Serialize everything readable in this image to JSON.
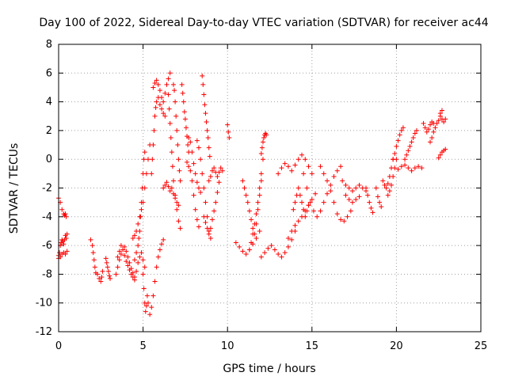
{
  "chart_data": {
    "type": "scatter",
    "title": "Day 100 of 2022, Sidereal Day-to-day VTEC variation (SDTVAR) for receiver ac44",
    "xlabel": "GPS time / hours",
    "ylabel": "SDTVAR / TECUs",
    "xlim": [
      0,
      25
    ],
    "ylim": [
      -12,
      8
    ],
    "xticks": [
      0,
      5,
      10,
      15,
      20,
      25
    ],
    "yticks": [
      -12,
      -10,
      -8,
      -6,
      -4,
      -2,
      0,
      2,
      4,
      6,
      8
    ],
    "grid": true,
    "marker": "+",
    "color": "#ff0000",
    "segments": [
      {
        "name": "arc-1",
        "x": [
          0.0,
          0.1,
          0.2,
          0.3,
          0.35,
          0.4,
          0.45
        ],
        "y": [
          -2.7,
          -3.0,
          -3.5,
          -3.8,
          -3.9,
          -3.8,
          -4.0
        ]
      },
      {
        "name": "arc-2",
        "x": [
          0.0,
          0.05,
          0.1,
          0.15,
          0.2,
          0.25,
          0.3,
          0.35,
          0.4,
          0.45,
          0.5
        ],
        "y": [
          -6.9,
          -6.5,
          -6.0,
          -5.8,
          -5.6,
          -5.7,
          -5.9,
          -5.6,
          -5.3,
          -5.5,
          -5.2
        ]
      },
      {
        "name": "arc-3",
        "x": [
          0.0,
          0.1,
          0.2,
          0.3,
          0.4,
          0.5
        ],
        "y": [
          -6.7,
          -6.8,
          -6.6,
          -6.5,
          -6.6,
          -6.4
        ]
      },
      {
        "name": "arc-4",
        "x": [
          1.9,
          2.0,
          2.05,
          2.1,
          2.15,
          2.2,
          2.3,
          2.4,
          2.5,
          2.55,
          2.6
        ],
        "y": [
          -5.6,
          -6.0,
          -6.5,
          -7.0,
          -7.5,
          -7.9,
          -8.0,
          -8.3,
          -8.5,
          -8.2,
          -7.8
        ]
      },
      {
        "name": "arc-5",
        "x": [
          2.8,
          2.85,
          2.9,
          2.95,
          3.0,
          3.05
        ],
        "y": [
          -6.9,
          -7.2,
          -7.5,
          -7.8,
          -8.1,
          -8.3
        ]
      },
      {
        "name": "arc-6",
        "x": [
          3.4,
          3.5,
          3.6,
          3.7,
          3.8,
          3.9,
          4.0,
          4.1,
          4.2,
          4.3,
          4.4,
          4.5,
          4.6,
          4.7,
          4.8,
          4.9,
          5.0,
          5.1
        ],
        "y": [
          -8.0,
          -7.5,
          -7.0,
          -6.6,
          -6.3,
          -6.1,
          -6.4,
          -6.8,
          -7.2,
          -7.6,
          -7.9,
          -8.2,
          -7.8,
          -7.2,
          -6.8,
          -6.5,
          -7.0,
          -7.5
        ]
      },
      {
        "name": "arc-7",
        "x": [
          3.5,
          3.6,
          3.7,
          3.8,
          3.9,
          4.0,
          4.1,
          4.2,
          4.3,
          4.4,
          4.5
        ],
        "y": [
          -6.8,
          -6.4,
          -6.0,
          -6.3,
          -6.7,
          -7.1,
          -7.4,
          -7.7,
          -8.0,
          -8.2,
          -8.4
        ]
      },
      {
        "name": "arc-8",
        "x": [
          4.4,
          4.5,
          4.6,
          4.7,
          4.8,
          4.9,
          5.0,
          5.1,
          5.2,
          5.3,
          5.4
        ],
        "y": [
          -5.5,
          -5.3,
          -5.0,
          -4.5,
          -4.0,
          -3.5,
          -3.0,
          -2.0,
          -1.0,
          0.0,
          1.0
        ]
      },
      {
        "name": "arc-9",
        "x": [
          4.5,
          4.6,
          4.7,
          4.75,
          4.8,
          4.85,
          4.9,
          4.95,
          5.0,
          5.05,
          5.1
        ],
        "y": [
          -7.0,
          -6.5,
          -6.0,
          -5.5,
          -5.0,
          -4.0,
          -3.0,
          -2.0,
          -1.0,
          0.0,
          0.5
        ]
      },
      {
        "name": "arc-10",
        "x": [
          5.0,
          5.05,
          5.1,
          5.15,
          5.2,
          5.25,
          5.3,
          5.4,
          5.5,
          5.6,
          5.7,
          5.8,
          5.9,
          6.0,
          6.1,
          6.2
        ],
        "y": [
          -8.0,
          -9.0,
          -10.0,
          -10.6,
          -10.2,
          -9.5,
          -10.0,
          -10.8,
          -10.3,
          -9.5,
          -8.5,
          -7.5,
          -6.8,
          -6.3,
          -5.9,
          -5.6
        ]
      },
      {
        "name": "arc-11",
        "x": [
          5.5,
          5.55,
          5.6,
          5.65,
          5.7,
          5.75,
          5.8,
          5.9,
          6.0,
          6.1,
          6.2,
          6.3
        ],
        "y": [
          -1.0,
          0.0,
          1.0,
          2.0,
          3.0,
          3.6,
          4.0,
          4.3,
          3.8,
          3.5,
          3.2,
          3.0
        ]
      },
      {
        "name": "arc-12",
        "x": [
          5.6,
          5.7,
          5.8,
          5.9,
          6.0,
          6.1,
          6.2,
          6.3,
          6.4,
          6.5,
          6.6
        ],
        "y": [
          5.0,
          5.3,
          5.5,
          5.2,
          4.8,
          4.3,
          4.0,
          4.6,
          5.2,
          5.6,
          6.0
        ]
      },
      {
        "name": "arc-13",
        "x": [
          6.2,
          6.3,
          6.4,
          6.5,
          6.6,
          6.7,
          6.8,
          6.9,
          7.0,
          7.1
        ],
        "y": [
          -2.0,
          -1.8,
          -1.6,
          -1.9,
          -2.2,
          -2.0,
          -2.4,
          -2.7,
          -3.0,
          -3.2
        ]
      },
      {
        "name": "arc-14",
        "x": [
          6.5,
          6.55,
          6.6,
          6.65,
          6.7,
          6.75,
          6.8,
          6.9,
          7.0,
          7.1,
          7.2
        ],
        "y": [
          4.5,
          3.5,
          2.5,
          1.5,
          0.5,
          -0.5,
          -1.5,
          -2.5,
          -3.5,
          -4.3,
          -4.8
        ]
      },
      {
        "name": "arc-15",
        "x": [
          6.8,
          6.85,
          6.9,
          6.95,
          7.0,
          7.05,
          7.1,
          7.15,
          7.2
        ],
        "y": [
          5.2,
          4.8,
          4.0,
          3.0,
          2.0,
          1.0,
          0.0,
          -0.8,
          -1.5
        ]
      },
      {
        "name": "arc-16",
        "x": [
          7.3,
          7.35,
          7.4,
          7.45,
          7.5,
          7.55,
          7.6,
          7.65,
          7.7
        ],
        "y": [
          5.2,
          4.6,
          4.0,
          3.3,
          2.8,
          2.2,
          1.6,
          1.0,
          0.5
        ]
      },
      {
        "name": "arc-17",
        "x": [
          7.6,
          7.7,
          7.8,
          7.9,
          8.0,
          8.1,
          8.2,
          8.3
        ],
        "y": [
          -0.2,
          -0.5,
          -0.8,
          -1.5,
          -2.5,
          -3.5,
          -4.2,
          -4.7
        ]
      },
      {
        "name": "arc-18",
        "x": [
          7.7,
          7.8,
          7.9,
          8.0,
          8.1,
          8.2,
          8.3,
          8.4
        ],
        "y": [
          1.5,
          1.2,
          0.5,
          -0.3,
          -1.0,
          -1.6,
          -2.0,
          -2.3
        ]
      },
      {
        "name": "arc-19",
        "x": [
          8.5,
          8.55,
          8.6,
          8.65,
          8.7,
          8.75,
          8.8,
          8.85,
          8.9,
          8.95
        ],
        "y": [
          5.8,
          5.2,
          4.5,
          3.8,
          3.2,
          2.6,
          2.0,
          1.5,
          0.8,
          0.2
        ]
      },
      {
        "name": "arc-20",
        "x": [
          8.2,
          8.3,
          8.4,
          8.5,
          8.6,
          8.7,
          8.8,
          8.9,
          9.0
        ],
        "y": [
          1.3,
          0.8,
          0.0,
          -1.0,
          -2.0,
          -3.0,
          -4.0,
          -5.0,
          -5.5
        ]
      },
      {
        "name": "arc-21",
        "x": [
          8.6,
          8.7,
          8.8,
          8.9,
          9.0,
          9.1,
          9.2,
          9.3,
          9.4,
          9.5
        ],
        "y": [
          -4.0,
          -4.4,
          -4.8,
          -5.2,
          -4.8,
          -4.2,
          -3.6,
          -3.0,
          -2.3,
          -1.6
        ]
      },
      {
        "name": "arc-22",
        "x": [
          8.9,
          9.0,
          9.1,
          9.2,
          9.3,
          9.4,
          9.5,
          9.6,
          9.7
        ],
        "y": [
          -1.5,
          -1.2,
          -0.8,
          -0.6,
          -0.9,
          -1.2,
          -0.9,
          -0.6,
          -0.8
        ]
      },
      {
        "name": "arc-23",
        "x": [
          10.0,
          10.05,
          10.1
        ],
        "y": [
          2.4,
          1.9,
          1.5
        ]
      },
      {
        "name": "arc-24",
        "x": [
          10.5,
          10.7,
          10.9,
          11.1,
          11.3,
          11.5,
          11.7,
          11.9
        ],
        "y": [
          -5.8,
          -6.1,
          -6.4,
          -6.6,
          -6.3,
          -5.9,
          -5.5,
          -5.0
        ]
      },
      {
        "name": "arc-25",
        "x": [
          10.9,
          11.0,
          11.1,
          11.2,
          11.3,
          11.4,
          11.5,
          11.6,
          11.7,
          11.8,
          11.9,
          12.0
        ],
        "y": [
          -1.5,
          -2.0,
          -2.5,
          -3.0,
          -3.6,
          -4.2,
          -4.8,
          -5.2,
          -4.5,
          -3.5,
          -2.5,
          -1.5
        ]
      },
      {
        "name": "arc-26",
        "x": [
          11.3,
          11.4,
          11.5,
          11.6,
          11.7,
          11.8,
          11.9,
          12.0,
          12.1
        ],
        "y": [
          -6.3,
          -5.8,
          -5.2,
          -4.5,
          -3.8,
          -3.0,
          -2.0,
          -1.0,
          0.0
        ]
      },
      {
        "name": "arc-27",
        "x": [
          12.0,
          12.05,
          12.1,
          12.15,
          12.2,
          12.25,
          12.3
        ],
        "y": [
          0.4,
          0.8,
          1.2,
          1.5,
          1.7,
          1.8,
          1.7
        ]
      },
      {
        "name": "arc-28",
        "x": [
          12.0,
          12.2,
          12.4,
          12.6,
          12.8,
          13.0,
          13.2,
          13.4,
          13.6,
          13.8,
          14.0
        ],
        "y": [
          -6.8,
          -6.5,
          -6.2,
          -6.0,
          -6.3,
          -6.6,
          -6.8,
          -6.5,
          -6.1,
          -5.6,
          -5.0
        ]
      },
      {
        "name": "arc-29",
        "x": [
          13.0,
          13.2,
          13.4,
          13.6,
          13.8,
          14.0,
          14.2,
          14.4,
          14.6,
          14.8,
          15.0
        ],
        "y": [
          -1.0,
          -0.6,
          -0.3,
          -0.5,
          -0.8,
          -0.4,
          0.0,
          0.3,
          0.0,
          -0.5,
          -1.0
        ]
      },
      {
        "name": "arc-30",
        "x": [
          13.6,
          13.8,
          14.0,
          14.2,
          14.4,
          14.6,
          14.8,
          15.0,
          15.2
        ],
        "y": [
          -5.5,
          -5.0,
          -4.6,
          -4.3,
          -4.0,
          -3.6,
          -3.2,
          -2.8,
          -2.4
        ]
      },
      {
        "name": "arc-31",
        "x": [
          13.9,
          14.0,
          14.1,
          14.2,
          14.3,
          14.4,
          14.5,
          14.6,
          14.7,
          14.8
        ],
        "y": [
          -3.5,
          -3.0,
          -2.5,
          -2.0,
          -2.5,
          -3.0,
          -3.5,
          -4.0,
          -3.6,
          -3.2
        ]
      },
      {
        "name": "arc-32",
        "x": [
          14.5,
          14.7,
          14.9,
          15.1,
          15.3,
          15.5,
          15.7,
          15.9,
          16.1,
          16.3,
          16.5,
          16.7
        ],
        "y": [
          -1.0,
          -2.0,
          -3.0,
          -3.6,
          -4.0,
          -3.6,
          -3.0,
          -2.4,
          -1.8,
          -1.2,
          -0.8,
          -0.5
        ]
      },
      {
        "name": "arc-33",
        "x": [
          15.5,
          15.7,
          15.9,
          16.1,
          16.3,
          16.5,
          16.7,
          16.9,
          17.1,
          17.3
        ],
        "y": [
          -0.5,
          -1.0,
          -1.5,
          -2.2,
          -3.0,
          -3.8,
          -4.2,
          -4.3,
          -4.0,
          -3.6
        ]
      },
      {
        "name": "arc-34",
        "x": [
          16.8,
          17.0,
          17.2,
          17.4,
          17.6,
          17.8,
          18.0,
          18.2
        ],
        "y": [
          -1.5,
          -1.8,
          -2.0,
          -2.2,
          -2.0,
          -1.8,
          -2.0,
          -2.2
        ]
      },
      {
        "name": "arc-35",
        "x": [
          17.0,
          17.2,
          17.4,
          17.6,
          17.8
        ],
        "y": [
          -2.5,
          -2.8,
          -3.0,
          -2.8,
          -2.6
        ]
      },
      {
        "name": "arc-36",
        "x": [
          18.2,
          18.3,
          18.4,
          18.5,
          18.6
        ],
        "y": [
          -2.0,
          -2.5,
          -3.0,
          -3.4,
          -3.7
        ]
      },
      {
        "name": "arc-37",
        "x": [
          18.8,
          18.9,
          19.0,
          19.1
        ],
        "y": [
          -2.0,
          -2.6,
          -3.0,
          -3.3
        ]
      },
      {
        "name": "arc-38",
        "x": [
          19.2,
          19.3,
          19.4,
          19.5,
          19.6,
          19.7,
          19.8
        ],
        "y": [
          -1.5,
          -1.8,
          -2.0,
          -1.7,
          -1.2,
          -0.6,
          0.0
        ]
      },
      {
        "name": "arc-39",
        "x": [
          19.5,
          19.6,
          19.7,
          19.8,
          19.9,
          20.0
        ],
        "y": [
          -2.5,
          -2.2,
          -1.8,
          -1.2,
          -0.6,
          0.0
        ]
      },
      {
        "name": "arc-40",
        "x": [
          19.8,
          19.9,
          20.0,
          20.1,
          20.2,
          20.3,
          20.4
        ],
        "y": [
          0.0,
          0.4,
          0.9,
          1.3,
          1.7,
          2.0,
          2.2
        ]
      },
      {
        "name": "arc-41",
        "x": [
          20.1,
          20.3,
          20.5,
          20.7,
          20.9,
          21.1,
          21.3,
          21.5
        ],
        "y": [
          -0.7,
          -0.5,
          -0.4,
          -0.6,
          -0.8,
          -0.6,
          -0.5,
          -0.6
        ]
      },
      {
        "name": "arc-42",
        "x": [
          20.5,
          20.6,
          20.7,
          20.8,
          20.9,
          21.0,
          21.1,
          21.2
        ],
        "y": [
          0.0,
          0.3,
          0.6,
          0.9,
          1.2,
          1.5,
          1.8,
          2.0
        ]
      },
      {
        "name": "arc-43",
        "x": [
          21.6,
          21.7,
          21.8,
          21.9,
          22.0,
          22.1,
          22.2
        ],
        "y": [
          2.5,
          2.2,
          1.9,
          2.1,
          2.4,
          2.6,
          2.5
        ]
      },
      {
        "name": "arc-44",
        "x": [
          22.0,
          22.1,
          22.2,
          22.3,
          22.4,
          22.5,
          22.6,
          22.7,
          22.8,
          22.9
        ],
        "y": [
          1.2,
          1.5,
          1.9,
          2.2,
          2.5,
          2.7,
          3.0,
          2.8,
          2.6,
          2.8
        ]
      },
      {
        "name": "arc-45",
        "x": [
          22.5,
          22.6,
          22.7,
          22.8,
          22.9
        ],
        "y": [
          0.1,
          0.3,
          0.5,
          0.6,
          0.7
        ]
      },
      {
        "name": "arc-46",
        "x": [
          22.6,
          22.7
        ],
        "y": [
          3.2,
          3.4
        ]
      }
    ]
  }
}
